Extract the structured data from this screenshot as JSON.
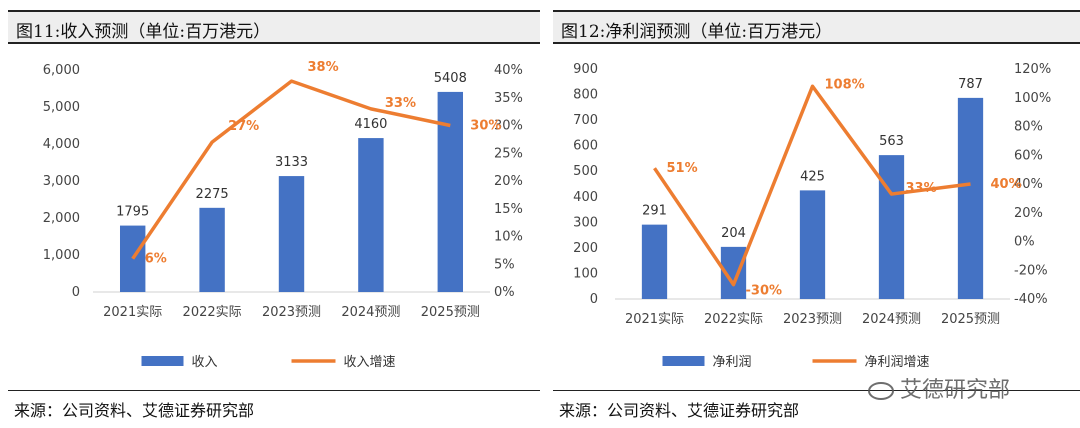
{
  "charts": [
    {
      "title": "图11:收入预测（单位:百万港元）",
      "source": "来源：公司资料、艾德证券研究部",
      "left_ticks": [
        "6,000",
        "5,000",
        "4,000",
        "3,000",
        "2,000",
        "1,000",
        "0"
      ],
      "right_ticks": [
        "40%",
        "35%",
        "30%",
        "25%",
        "20%",
        "15%",
        "10%",
        "5%",
        "0%"
      ],
      "bar_labels": [
        "1795",
        "2275",
        "3133",
        "4160",
        "5408"
      ],
      "pct_labels": [
        "6%",
        "27%",
        "38%",
        "33%",
        "30%"
      ],
      "legend": [
        "收入",
        "收入增速"
      ]
    },
    {
      "title": "图12:净利润预测（单位:百万港元）",
      "source": "来源：公司资料、艾德证券研究部",
      "left_ticks": [
        "900",
        "800",
        "700",
        "600",
        "500",
        "400",
        "300",
        "200",
        "100",
        "0"
      ],
      "right_ticks": [
        "120%",
        "100%",
        "80%",
        "60%",
        "40%",
        "20%",
        "0%",
        "-20%",
        "-40%"
      ],
      "bar_labels": [
        "291",
        "204",
        "425",
        "563",
        "787"
      ],
      "pct_labels": [
        "51%",
        "-30%",
        "108%",
        "33%",
        "40%"
      ],
      "legend": [
        "净利润",
        "净利润增速"
      ]
    }
  ],
  "watermark": "艾德研究部",
  "chart_data": [
    {
      "type": "bar",
      "title": "图11:收入预测（单位:百万港元）",
      "categories": [
        "2021实际",
        "2022实际",
        "2023预测",
        "2024预测",
        "2025预测"
      ],
      "series": [
        {
          "name": "收入",
          "type": "bar",
          "axis": "left",
          "values": [
            1795,
            2275,
            3133,
            4160,
            5408
          ]
        },
        {
          "name": "收入增速",
          "type": "line",
          "axis": "right",
          "values": [
            6,
            27,
            38,
            33,
            30
          ]
        }
      ],
      "ylim": [
        0,
        6000
      ],
      "ylim_right": [
        0,
        40
      ],
      "legend": "bottom",
      "colors": {
        "bar": "#4472C4",
        "line": "#ED7D31"
      }
    },
    {
      "type": "bar",
      "title": "图12:净利润预测（单位:百万港元）",
      "categories": [
        "2021实际",
        "2022实际",
        "2023预测",
        "2024预测",
        "2025预测"
      ],
      "series": [
        {
          "name": "净利润",
          "type": "bar",
          "axis": "left",
          "values": [
            291,
            204,
            425,
            563,
            787
          ]
        },
        {
          "name": "净利润增速",
          "type": "line",
          "axis": "right",
          "values": [
            51,
            -30,
            108,
            33,
            40
          ]
        }
      ],
      "ylim": [
        0,
        900
      ],
      "ylim_right": [
        -40,
        120
      ],
      "legend": "bottom",
      "colors": {
        "bar": "#4472C4",
        "line": "#ED7D31"
      }
    }
  ]
}
